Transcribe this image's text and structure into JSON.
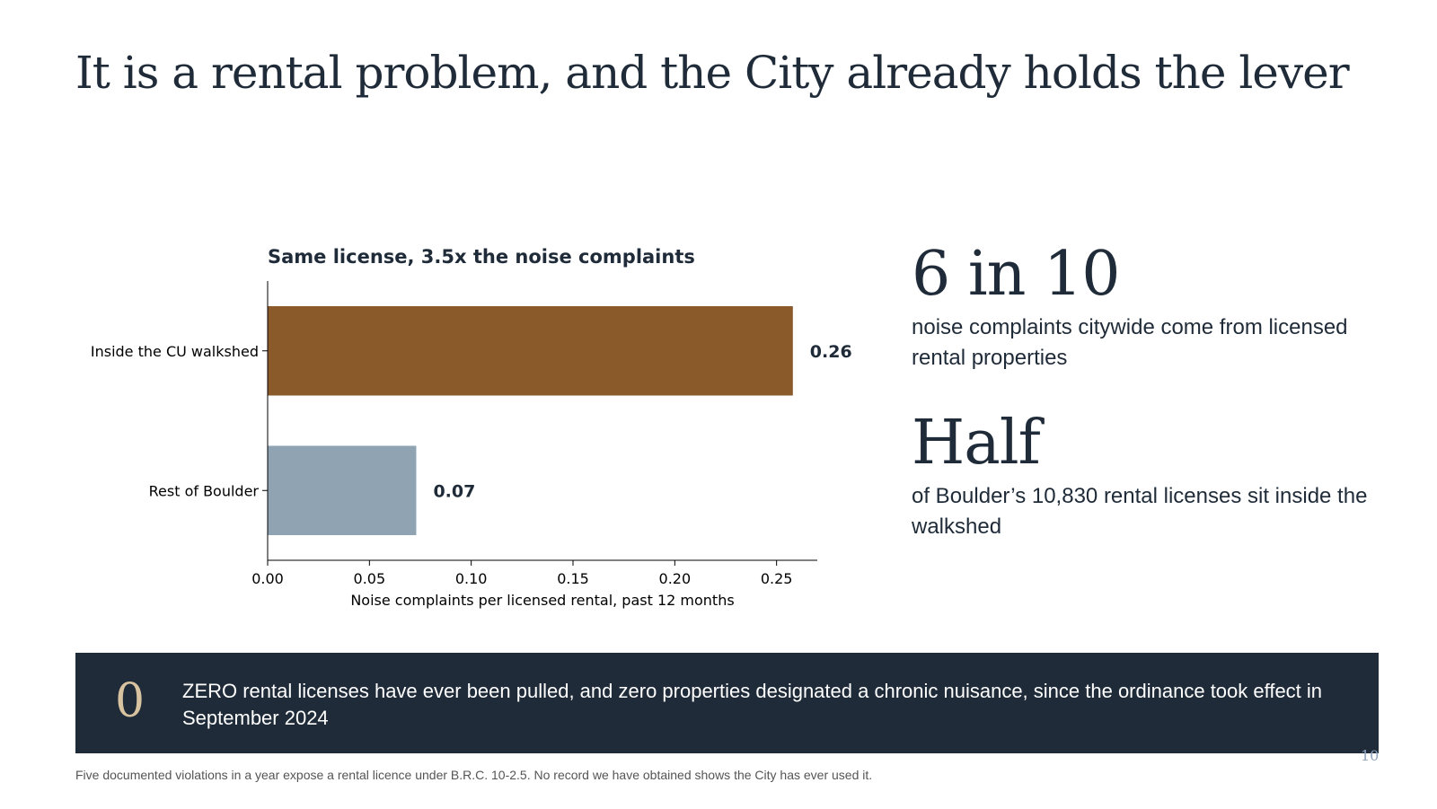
{
  "slide": {
    "title": "It is a rental problem, and the City already holds the lever",
    "page_number": "10",
    "footnote": "Five documented violations in a year expose a rental licence under B.R.C. 10-2.5. No record we have obtained shows the City has ever used it."
  },
  "stats": [
    {
      "big": "6 in 10",
      "desc": "noise complaints citywide come from licensed rental properties"
    },
    {
      "big": "Half",
      "desc": "of Boulder’s 10,830 rental licenses sit inside the walkshed"
    }
  ],
  "banner": {
    "number": "0",
    "text": "ZERO rental licenses have ever been pulled, and zero properties designated a chronic nuisance, since the ordinance took effect in September 2024"
  },
  "colors": {
    "navy": "#1f2b38",
    "brown": "#8a5a2b",
    "steel": "#8fa3b3",
    "tan": "#d8c3a0",
    "page_num": "#8fa4bf"
  },
  "chart_data": {
    "type": "bar",
    "orientation": "horizontal",
    "title": "Same license, 3.5x the noise complaints",
    "xlabel": "Noise complaints per licensed rental, past 12 months",
    "ylabel": "",
    "categories": [
      "Inside the CU walkshed",
      "Rest of Boulder"
    ],
    "values": [
      0.258,
      0.073
    ],
    "value_labels": [
      "0.26",
      "0.07"
    ],
    "bar_colors": [
      "#8a5a2b",
      "#8fa3b3"
    ],
    "xlim": [
      0,
      0.27
    ],
    "xticks": [
      0,
      0.05,
      0.1,
      0.15,
      0.2,
      0.25
    ],
    "xtick_labels": [
      "0.00",
      "0.05",
      "0.10",
      "0.15",
      "0.20",
      "0.25"
    ],
    "grid": false,
    "legend": "none"
  }
}
